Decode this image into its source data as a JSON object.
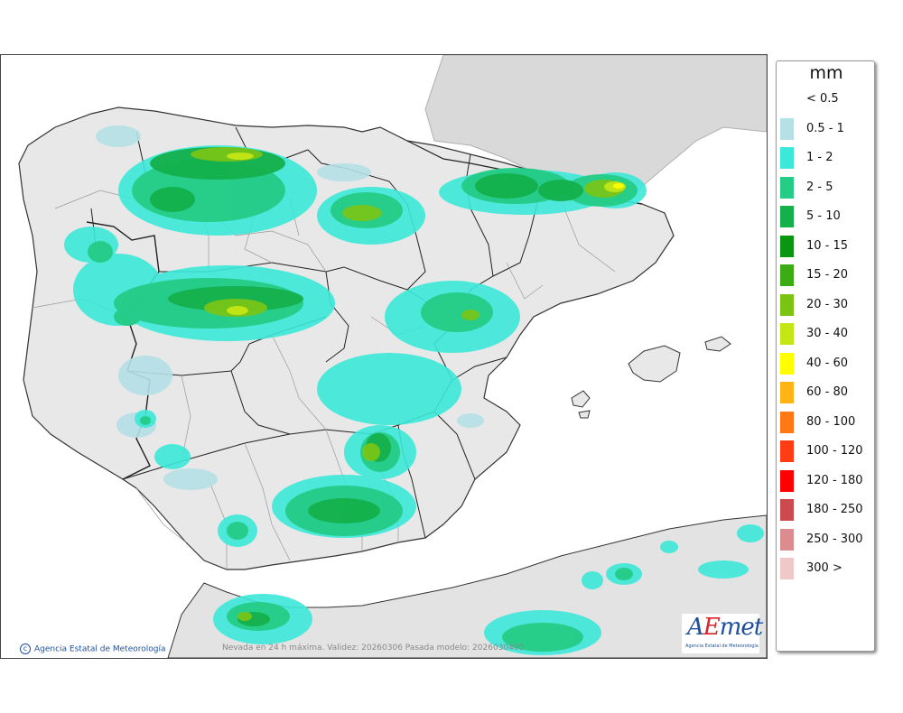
{
  "legend": {
    "unit": "mm",
    "items": [
      {
        "label": "< 0.5",
        "color": "#ffffff"
      },
      {
        "label": "0.5 - 1",
        "color": "#b4e0e6"
      },
      {
        "label": "1 - 2",
        "color": "#3ce8d9"
      },
      {
        "label": "2 - 5",
        "color": "#24cc86"
      },
      {
        "label": "5 - 10",
        "color": "#14b04c"
      },
      {
        "label": "10 - 15",
        "color": "#0a9610"
      },
      {
        "label": "15 - 20",
        "color": "#3cac14"
      },
      {
        "label": "20 - 30",
        "color": "#7cc414"
      },
      {
        "label": "30 - 40",
        "color": "#c4e614"
      },
      {
        "label": "40 - 60",
        "color": "#ffff00"
      },
      {
        "label": "60 - 80",
        "color": "#ffb414"
      },
      {
        "label": "80 - 100",
        "color": "#ff7814"
      },
      {
        "label": "100 - 120",
        "color": "#ff3c14"
      },
      {
        "label": "120 - 180",
        "color": "#ff0000"
      },
      {
        "label": "180 - 250",
        "color": "#cc4a4e"
      },
      {
        "label": "250 - 300",
        "color": "#dc8c8e"
      },
      {
        "label": "300 >",
        "color": "#f0c8c8"
      }
    ]
  },
  "credit": "Agencia Estatal de Meteorología",
  "caption": "Nevada en 24 h máxima. Validez: 20260306 Pasada modelo: 2026030400",
  "logo": {
    "word_a": "A",
    "word_e": "E",
    "word_rest": "met",
    "subtitle": "Agencia Estatal de Meteorología"
  },
  "colors": {
    "sea": "#ffffff",
    "land": "#e8e8e8",
    "land_outside": "#d9d9d9",
    "border": "#222222",
    "region_line": "#9a9a9a",
    "brand_blue": "#1e4f9c",
    "brand_red": "#d8232a"
  }
}
